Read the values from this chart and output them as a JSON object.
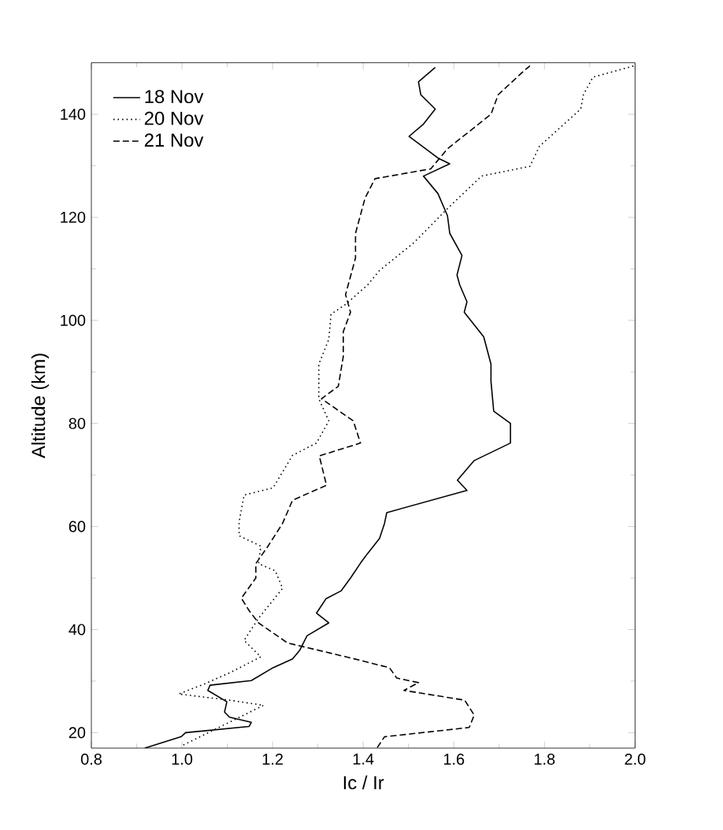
{
  "chart_data": {
    "type": "line",
    "xlabel": "Ic / Ir",
    "ylabel": "Altitude (km)",
    "xlim": [
      0.8,
      2.0
    ],
    "ylim": [
      17,
      150
    ],
    "xticks": [
      0.8,
      {
        "value": 1.0,
        "label": "1.0"
      },
      1.2,
      1.4,
      1.6,
      1.8,
      {
        "value": 2.0,
        "label": "2.0"
      }
    ],
    "yticks": [
      20,
      40,
      60,
      80,
      100,
      120,
      140
    ],
    "legend": "top left",
    "grid": false,
    "marker": "none",
    "series": [
      {
        "name": "18 Nov",
        "color": "#000000",
        "line_style": "solid",
        "x": [
          0.918,
          0.998,
          1.008,
          1.148,
          1.153,
          1.105,
          1.094,
          1.099,
          1.057,
          1.062,
          1.153,
          1.201,
          1.244,
          1.26,
          1.276,
          1.324,
          1.297,
          1.318,
          1.351,
          1.372,
          1.394,
          1.41,
          1.436,
          1.447,
          1.452,
          1.629,
          1.608,
          1.645,
          1.725,
          1.725,
          1.688,
          1.682,
          1.682,
          1.666,
          1.623,
          1.629,
          1.613,
          1.607,
          1.618,
          1.591,
          1.586,
          1.565,
          1.533,
          1.591,
          1.565,
          1.501,
          1.533,
          1.559,
          1.527,
          1.522,
          1.559
        ],
        "values": [
          17,
          19.2,
          20,
          21.2,
          22,
          23,
          24,
          26,
          28.2,
          29.2,
          30.1,
          32.6,
          34.3,
          36,
          38.8,
          41.3,
          43.2,
          46,
          47.5,
          50,
          52.9,
          54.8,
          57.7,
          60.6,
          62.7,
          67,
          69,
          72.8,
          76.2,
          80,
          82.4,
          88.2,
          91.5,
          96.8,
          101.6,
          103.6,
          106.9,
          108.8,
          112.6,
          116.9,
          120.3,
          124.6,
          128,
          130.4,
          131.5,
          135.7,
          138.1,
          141,
          143.8,
          146.3,
          149.1
        ]
      },
      {
        "name": "20 Nov",
        "color": "#000000",
        "line_style": "dotted",
        "x": [
          1.003,
          1.18,
          1.105,
          0.993,
          1.051,
          1.105,
          1.174,
          1.137,
          1.169,
          1.222,
          1.206,
          1.169,
          1.174,
          1.126,
          1.126,
          1.137,
          1.201,
          1.244,
          1.297,
          1.324,
          1.302,
          1.302,
          1.324,
          1.329,
          1.361,
          1.41,
          1.436,
          1.511,
          1.586,
          1.661,
          1.768,
          1.789,
          1.88,
          1.886,
          1.907,
          1.998
        ],
        "values": [
          17.6,
          25.3,
          26.3,
          27.5,
          29.5,
          31.6,
          34.7,
          37.9,
          42.2,
          48,
          51.4,
          52.8,
          56.2,
          58.2,
          60.8,
          66.1,
          67.5,
          73.8,
          76.2,
          80.5,
          84.8,
          91.5,
          96.3,
          101.2,
          103.1,
          106.9,
          109.7,
          115,
          121.7,
          128,
          129.9,
          133.8,
          141,
          143.8,
          147.2,
          149.4
        ]
      },
      {
        "name": "21 Nov",
        "color": "#000000",
        "line_style": "dashed",
        "x": [
          1.431,
          1.447,
          1.634,
          1.645,
          1.624,
          1.49,
          1.522,
          1.474,
          1.458,
          1.372,
          1.233,
          1.169,
          1.148,
          1.131,
          1.163,
          1.163,
          1.19,
          1.222,
          1.244,
          1.319,
          1.303,
          1.394,
          1.378,
          1.308,
          1.345,
          1.356,
          1.356,
          1.372,
          1.361,
          1.383,
          1.383,
          1.404,
          1.426,
          1.549,
          1.586,
          1.682,
          1.698,
          1.752,
          1.768
        ],
        "values": [
          17.1,
          19.2,
          21,
          23.4,
          26.3,
          28.2,
          29.7,
          30.6,
          32.6,
          34.5,
          37.4,
          41.3,
          43.7,
          46.1,
          50,
          52.8,
          56.2,
          60.6,
          65.1,
          68,
          73.7,
          76.2,
          80.5,
          84.8,
          87.2,
          93,
          97.8,
          101.6,
          105,
          112.1,
          116.9,
          123.7,
          127.5,
          129.4,
          133.3,
          140,
          143.8,
          148.2,
          149.4
        ]
      }
    ]
  }
}
